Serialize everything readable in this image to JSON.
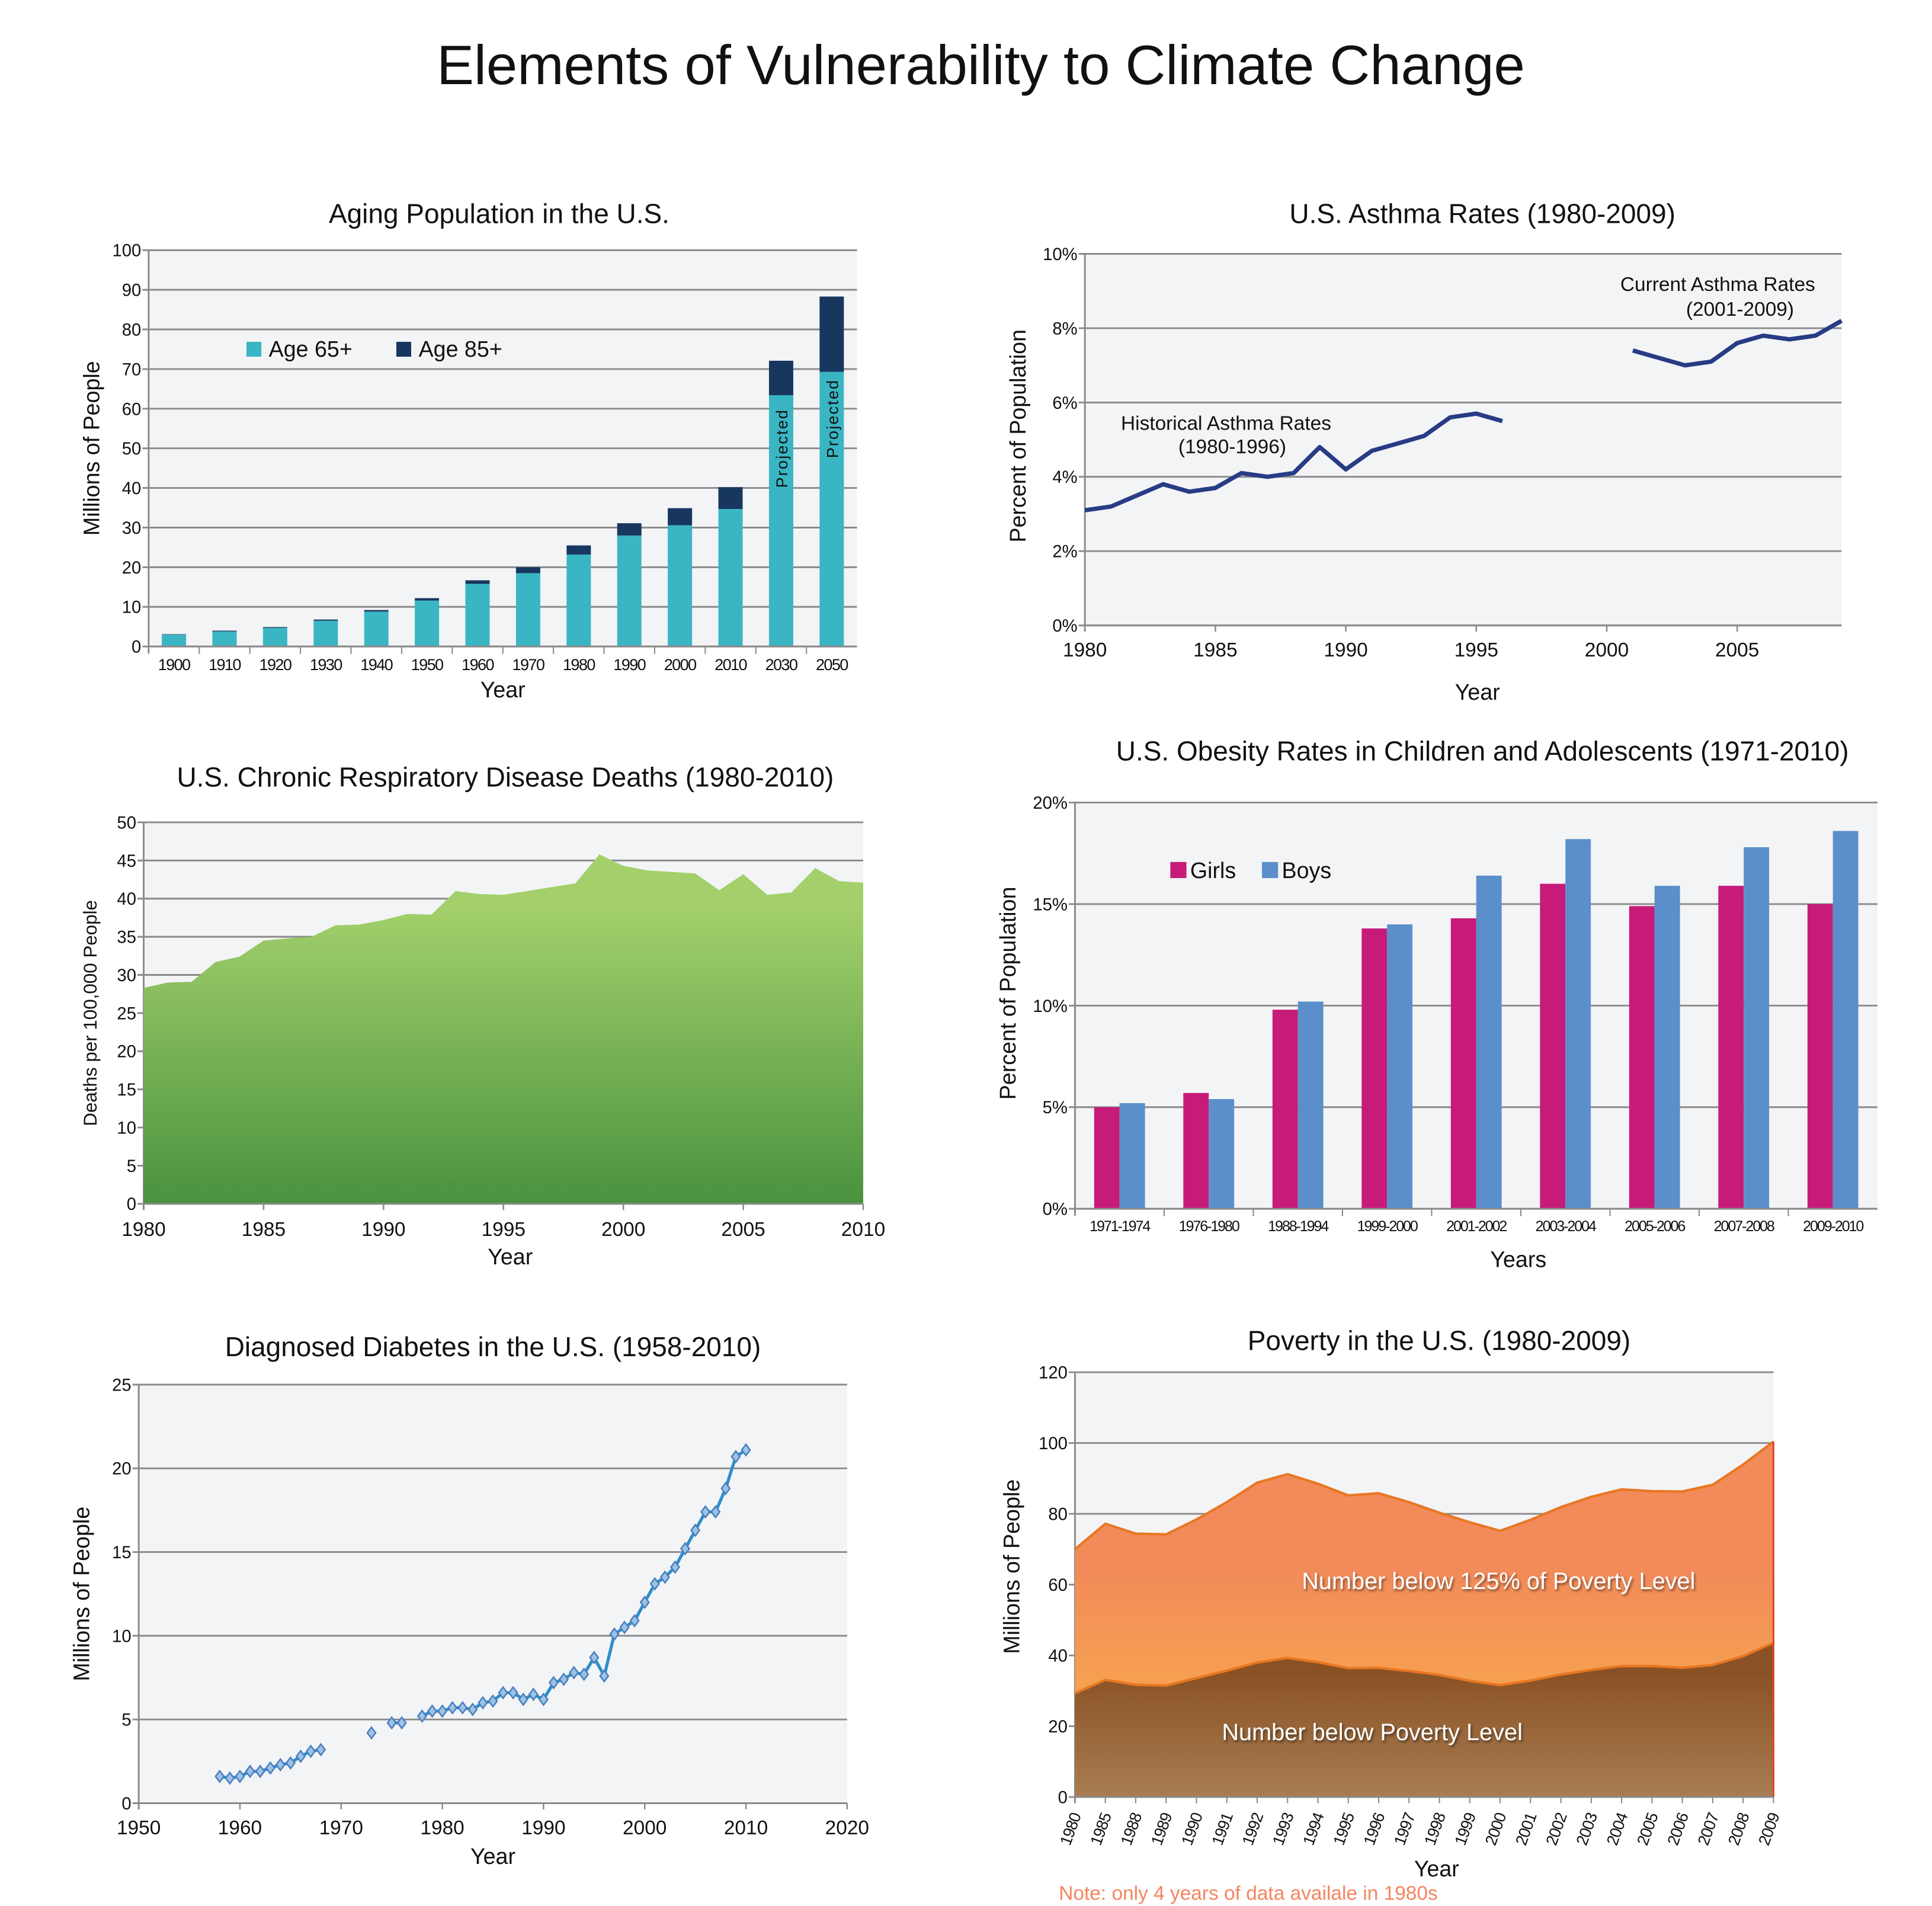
{
  "page_title": "Elements of Vulnerability to Climate Change",
  "chart_data": [
    {
      "type": "bar",
      "stacked": true,
      "title": "Aging Population in the U.S.",
      "xlabel": "Year",
      "ylabel": "Millions of People",
      "ylim": [
        0,
        100
      ],
      "yticks": [
        "0",
        "10",
        "20",
        "30",
        "40",
        "50",
        "60",
        "70",
        "80",
        "90",
        "100"
      ],
      "grid": true,
      "legend_placement": "top-left",
      "categories": [
        "1900",
        "1910",
        "1920",
        "1930",
        "1940",
        "1950",
        "1960",
        "1970",
        "1980",
        "1990",
        "2000",
        "2010",
        "2030",
        "2050"
      ],
      "series": [
        {
          "name": "Age 65+",
          "color": "#3ab5c3",
          "values": [
            3.0,
            3.8,
            4.7,
            6.5,
            8.8,
            11.6,
            15.8,
            18.5,
            23.2,
            28.0,
            30.6,
            34.7,
            63.4,
            69.3
          ]
        },
        {
          "name": "Age 85+",
          "color": "#17375e",
          "values": [
            0.1,
            0.2,
            0.2,
            0.3,
            0.4,
            0.6,
            0.9,
            1.5,
            2.3,
            3.1,
            4.3,
            5.5,
            8.7,
            19.0
          ]
        }
      ],
      "annotations": [
        {
          "category": "2030",
          "text": "Projected"
        },
        {
          "category": "2050",
          "text": "Projected"
        }
      ]
    },
    {
      "type": "line",
      "title": "U.S. Asthma Rates (1980-2009)",
      "xlabel": "Year",
      "ylabel": "Percent of Population",
      "xlim": [
        1980,
        2009
      ],
      "xticks": [
        "1980",
        "1985",
        "1990",
        "1995",
        "2000",
        "2005"
      ],
      "ylim": [
        0,
        10
      ],
      "yticks": [
        "0%",
        "2%",
        "4%",
        "6%",
        "8%",
        "10%"
      ],
      "grid": true,
      "color": "#283b85",
      "series": [
        {
          "x": [
            1980,
            1981,
            1982,
            1983,
            1984,
            1985,
            1986,
            1987,
            1988,
            1989,
            1990,
            1991,
            1992,
            1993,
            1994,
            1995,
            1996
          ],
          "y": [
            3.1,
            3.2,
            3.5,
            3.8,
            3.6,
            3.7,
            4.1,
            4.0,
            4.1,
            4.8,
            4.2,
            4.7,
            4.9,
            5.1,
            5.6,
            5.7,
            5.5
          ]
        },
        {
          "x": [
            2001,
            2002,
            2003,
            2004,
            2005,
            2006,
            2007,
            2008,
            2009
          ],
          "y": [
            7.4,
            7.2,
            7.0,
            7.1,
            7.6,
            7.8,
            7.7,
            7.8,
            8.2
          ]
        }
      ],
      "annotations": [
        {
          "line1": "Historical Asthma Rates",
          "line2": "(1980-1996)"
        },
        {
          "line1": "Current Asthma Rates",
          "line2": "(2001-2009)"
        }
      ]
    },
    {
      "type": "area",
      "title": "U.S. Chronic Respiratory Disease Deaths (1980-2010)",
      "xlabel": "Year",
      "ylabel": "Deaths per 100,000 People",
      "xlim": [
        1980,
        2010
      ],
      "xticks": [
        "1980",
        "1985",
        "1990",
        "1995",
        "2000",
        "2005",
        "2010"
      ],
      "ylim": [
        0,
        50
      ],
      "yticks": [
        "0",
        "5",
        "10",
        "15",
        "20",
        "25",
        "30",
        "35",
        "40",
        "45",
        "50"
      ],
      "grid": true,
      "colors": {
        "top": "#a3d06b",
        "bottom": "#4a923f"
      },
      "x": [
        1980,
        1981,
        1982,
        1983,
        1984,
        1985,
        1986,
        1987,
        1988,
        1989,
        1990,
        1991,
        1992,
        1993,
        1994,
        1995,
        1996,
        1997,
        1998,
        1999,
        2000,
        2001,
        2002,
        2003,
        2004,
        2005,
        2006,
        2007,
        2008,
        2009,
        2010
      ],
      "y": [
        28.3,
        29.0,
        29.1,
        31.7,
        32.4,
        34.5,
        34.8,
        35.0,
        36.5,
        36.6,
        37.2,
        38.0,
        37.9,
        41.0,
        40.6,
        40.5,
        41.0,
        41.5,
        42.0,
        45.8,
        44.3,
        43.7,
        43.5,
        43.3,
        41.1,
        43.2,
        40.5,
        40.8,
        44.0,
        42.3,
        42.1
      ]
    },
    {
      "type": "bar",
      "title": "U.S. Obesity Rates in Children and Adolescents (1971-2010)",
      "xlabel": "Years",
      "ylabel": "Percent of Population",
      "ylim": [
        0,
        20
      ],
      "yticks": [
        "0%",
        "5%",
        "10%",
        "15%",
        "20%"
      ],
      "grid": true,
      "legend_placement": "top-left",
      "categories": [
        "1971-1974",
        "1976-1980",
        "1988-1994",
        "1999-2000",
        "2001-2002",
        "2003-2004",
        "2005-2006",
        "2007-2008",
        "2009-2010"
      ],
      "series": [
        {
          "name": "Girls",
          "color": "#c71b7a",
          "values": [
            5.0,
            5.7,
            9.8,
            13.8,
            14.3,
            16.0,
            14.9,
            15.9,
            15.0
          ]
        },
        {
          "name": "Boys",
          "color": "#5b8fcb",
          "values": [
            5.2,
            5.4,
            10.2,
            14.0,
            16.4,
            18.2,
            15.9,
            17.8,
            18.6
          ]
        }
      ]
    },
    {
      "type": "scatter",
      "title": "Diagnosed Diabetes in the U.S. (1958-2010)",
      "xlabel": "Year",
      "ylabel": "Millions of People",
      "xlim": [
        1950,
        2020
      ],
      "xticks": [
        "1950",
        "1960",
        "1970",
        "1980",
        "1990",
        "2000",
        "2010",
        "2020"
      ],
      "ylim": [
        0,
        25
      ],
      "yticks": [
        "0",
        "5",
        "10",
        "15",
        "20",
        "25"
      ],
      "grid": true,
      "colors": {
        "line": "#2e8ec9",
        "marker_fill": "#9cc3e4",
        "marker_stroke": "#4a7fc0"
      },
      "x": [
        1958,
        1959,
        1960,
        1961,
        1962,
        1963,
        1964,
        1965,
        1966,
        1967,
        1968,
        1973,
        1975,
        1976,
        1978,
        1979,
        1980,
        1981,
        1982,
        1983,
        1984,
        1985,
        1986,
        1987,
        1988,
        1989,
        1990,
        1991,
        1992,
        1993,
        1994,
        1995,
        1996,
        1997,
        1998,
        1999,
        2000,
        2001,
        2002,
        2003,
        2004,
        2005,
        2006,
        2007,
        2008,
        2009,
        2010
      ],
      "y": [
        1.6,
        1.5,
        1.6,
        1.9,
        1.9,
        2.1,
        2.3,
        2.4,
        2.8,
        3.1,
        3.2,
        4.2,
        4.8,
        4.8,
        5.2,
        5.5,
        5.5,
        5.7,
        5.7,
        5.6,
        6.0,
        6.1,
        6.6,
        6.6,
        6.2,
        6.5,
        6.2,
        7.2,
        7.4,
        7.8,
        7.7,
        8.7,
        7.6,
        10.1,
        10.5,
        10.9,
        12.0,
        13.1,
        13.5,
        14.1,
        15.2,
        16.3,
        17.4,
        17.4,
        18.8,
        20.7,
        21.1
      ]
    },
    {
      "type": "area",
      "title": "Poverty in the U.S. (1980-2009)",
      "xlabel": "Year",
      "ylabel": "Millions of People",
      "ylim": [
        0,
        120
      ],
      "yticks": [
        "0",
        "20",
        "40",
        "60",
        "80",
        "100",
        "120"
      ],
      "grid": true,
      "categories": [
        "1980",
        "1985",
        "1988",
        "1989",
        "1990",
        "1991",
        "1992",
        "1993",
        "1994",
        "1995",
        "1996",
        "1997",
        "1998",
        "1999",
        "2000",
        "2001",
        "2002",
        "2003",
        "2004",
        "2005",
        "2006",
        "2007",
        "2008",
        "2009"
      ],
      "series": [
        {
          "name": "Number below 125% of Poverty Level",
          "colors": {
            "top": "#f28a5a",
            "bottom": "#f9b04a",
            "line": "#e87722"
          },
          "values": [
            70.0,
            77.2,
            74.4,
            74.2,
            78.4,
            83.3,
            88.8,
            91.2,
            88.5,
            85.2,
            85.8,
            83.3,
            80.3,
            77.6,
            75.2,
            78.3,
            81.9,
            84.8,
            86.9,
            86.4,
            86.3,
            88.2,
            93.9,
            100.4
          ]
        },
        {
          "name": "Number below Poverty Level",
          "colors": {
            "top": "#8a5224",
            "bottom": "#a87d52",
            "line": "#e87722"
          },
          "values": [
            29.3,
            33.1,
            31.7,
            31.5,
            33.6,
            35.7,
            38.0,
            39.3,
            38.1,
            36.4,
            36.5,
            35.6,
            34.5,
            32.8,
            31.6,
            32.9,
            34.6,
            35.9,
            37.0,
            37.0,
            36.5,
            37.3,
            39.8,
            43.6
          ]
        }
      ],
      "note": "Note: only 4 years of data availale in 1980s"
    }
  ]
}
